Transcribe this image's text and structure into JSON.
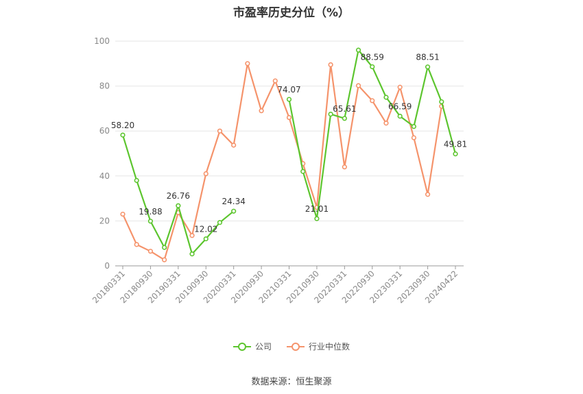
{
  "chart_data": {
    "type": "line",
    "title": "市盈率历史分位（%）",
    "source": "数据来源：恒生聚源",
    "ylim": [
      0,
      100
    ],
    "yticks": [
      0,
      20,
      40,
      60,
      80,
      100
    ],
    "x_tick_labels": [
      "20180331",
      "20180930",
      "20190331",
      "20190930",
      "20200331",
      "20200930",
      "20210331",
      "20210930",
      "20220331",
      "20220930",
      "20230331",
      "20230930",
      "20240422"
    ],
    "x": [
      "20180331",
      "20180630",
      "20180930",
      "20181231",
      "20190331",
      "20190630",
      "20190930",
      "20191231",
      "20200331",
      "20200630",
      "20200930",
      "20201231",
      "20210331",
      "20210630",
      "20210930",
      "20211231",
      "20220331",
      "20220630",
      "20220930",
      "20221231",
      "20230331",
      "20230630",
      "20230930",
      "20231231",
      "20240422"
    ],
    "grid": true,
    "legend": "bottom",
    "series": [
      {
        "name": "公司",
        "color": "#5cc52e",
        "values": [
          58.2,
          38.0,
          19.88,
          8.2,
          26.76,
          5.3,
          12.02,
          19.3,
          24.34,
          null,
          null,
          null,
          74.07,
          42.0,
          21.01,
          67.5,
          65.61,
          96.0,
          88.59,
          75.0,
          66.59,
          62.0,
          88.51,
          73.0,
          49.81
        ],
        "labels": [
          {
            "index": 0,
            "text": "58.20"
          },
          {
            "index": 2,
            "text": "19.88"
          },
          {
            "index": 4,
            "text": "26.76"
          },
          {
            "index": 6,
            "text": "12.02"
          },
          {
            "index": 8,
            "text": "24.34"
          },
          {
            "index": 12,
            "text": "74.07"
          },
          {
            "index": 14,
            "text": "21.01"
          },
          {
            "index": 16,
            "text": "65.61"
          },
          {
            "index": 18,
            "text": "88.59"
          },
          {
            "index": 20,
            "text": "66.59"
          },
          {
            "index": 22,
            "text": "88.51"
          },
          {
            "index": 24,
            "text": "49.81"
          }
        ]
      },
      {
        "name": "行业中位数",
        "color": "#f5936b",
        "values": [
          23.0,
          9.5,
          6.5,
          2.7,
          23.7,
          13.5,
          41.0,
          60.0,
          53.7,
          90.0,
          69.0,
          82.3,
          66.0,
          45.5,
          26.0,
          89.5,
          44.0,
          80.2,
          73.5,
          63.5,
          79.5,
          57.0,
          31.8,
          71.0,
          null
        ]
      }
    ]
  }
}
